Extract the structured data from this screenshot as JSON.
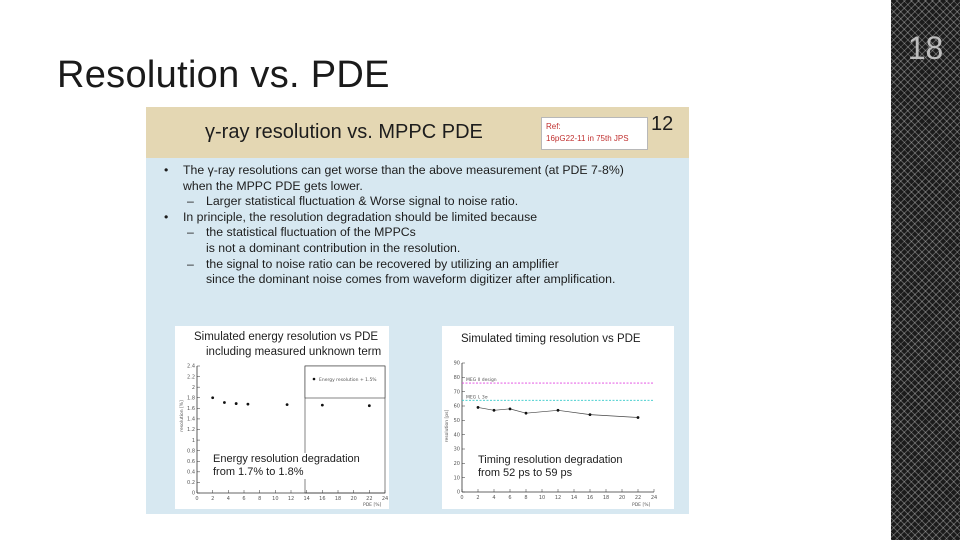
{
  "slide": {
    "title": "Resolution vs. PDE",
    "number": "18"
  },
  "embedded_slide": {
    "title": "γ-ray resolution vs. MPPC PDE",
    "ref_label": "Ref:",
    "ref_text": "16pG22-11 in 75th JPS",
    "page_number": "12",
    "bullets": [
      {
        "marker": "•",
        "level": 0,
        "lines": [
          "The γ-ray resolutions can get worse than the above measurement (at PDE 7-8%)",
          "when the MPPC PDE gets lower."
        ]
      },
      {
        "marker": "–",
        "level": 1,
        "lines": [
          "Larger statistical fluctuation & Worse signal to noise ratio."
        ]
      },
      {
        "marker": "•",
        "level": 0,
        "lines": [
          "In principle, the resolution degradation should be limited because"
        ]
      },
      {
        "marker": "–",
        "level": 1,
        "lines": [
          "the statistical fluctuation of the MPPCs",
          "is not a dominant contribution in the resolution."
        ]
      },
      {
        "marker": "–",
        "level": 1,
        "lines": [
          "the signal to noise ratio can be recovered by utilizing an amplifier",
          "since the dominant noise comes from waveform digitizer after amplification."
        ]
      }
    ],
    "energy_panel": {
      "title": "Simulated energy resolution vs PDE",
      "subtitle": "including measured unknown term",
      "caption_line1": "Energy resolution degradation",
      "caption_line2": "from 1.7% to 1.8%"
    },
    "timing_panel": {
      "title": "Simulated timing resolution vs PDE",
      "caption_line1": "Timing resolution degradation",
      "caption_line2": "from 52 ps to 59 ps"
    }
  },
  "colors": {
    "embed_background": "#d7e8f1",
    "embed_header": "#e4d7b3",
    "ref_text": "#c0302f",
    "meg2_line": "#e040e0",
    "meg1_line": "#30c8c8",
    "right_panel": "#1b1b1b"
  },
  "chart_data": [
    {
      "type": "scatter",
      "title": "Simulated energy resolution vs PDE",
      "subtitle": "including measured unknown term",
      "xlabel": "PDE [%]",
      "ylabel": "resolution [%]",
      "xlim": [
        0,
        24
      ],
      "ylim": [
        0,
        2.4
      ],
      "x_ticks": [
        "0",
        "2",
        "4",
        "6",
        "8",
        "10",
        "12",
        "14",
        "16",
        "18",
        "20",
        "22",
        "24"
      ],
      "y_ticks": [
        "0",
        "0.2",
        "0.4",
        "0.6",
        "0.8",
        "1",
        "1.2",
        "1.4",
        "1.6",
        "1.8",
        "2",
        "2.2",
        "2.4"
      ],
      "legend": [
        "Energy resolution + 1.5%"
      ],
      "legend_position": "top-right",
      "x": [
        2,
        3.5,
        5,
        6.5,
        11.5,
        16,
        22
      ],
      "y": [
        1.8,
        1.71,
        1.69,
        1.68,
        1.67,
        1.66,
        1.65
      ]
    },
    {
      "type": "line",
      "title": "Simulated timing resolution vs PDE",
      "xlabel": "PDE [%]",
      "ylabel": "resolution [ps]",
      "xlim": [
        0,
        24
      ],
      "ylim": [
        0,
        90
      ],
      "x_ticks": [
        "0",
        "2",
        "4",
        "6",
        "8",
        "10",
        "12",
        "14",
        "16",
        "18",
        "20",
        "22",
        "24"
      ],
      "y_ticks": [
        "0",
        "10",
        "20",
        "30",
        "40",
        "50",
        "60",
        "70",
        "80",
        "90"
      ],
      "reference_lines": [
        {
          "label": "MEG II design",
          "y": 76
        },
        {
          "label": "MEG I, 3σ",
          "y": 64
        }
      ],
      "x": [
        2,
        4,
        6,
        8,
        12,
        16,
        22
      ],
      "y": [
        59,
        57,
        58,
        55,
        57,
        54,
        52
      ]
    }
  ]
}
